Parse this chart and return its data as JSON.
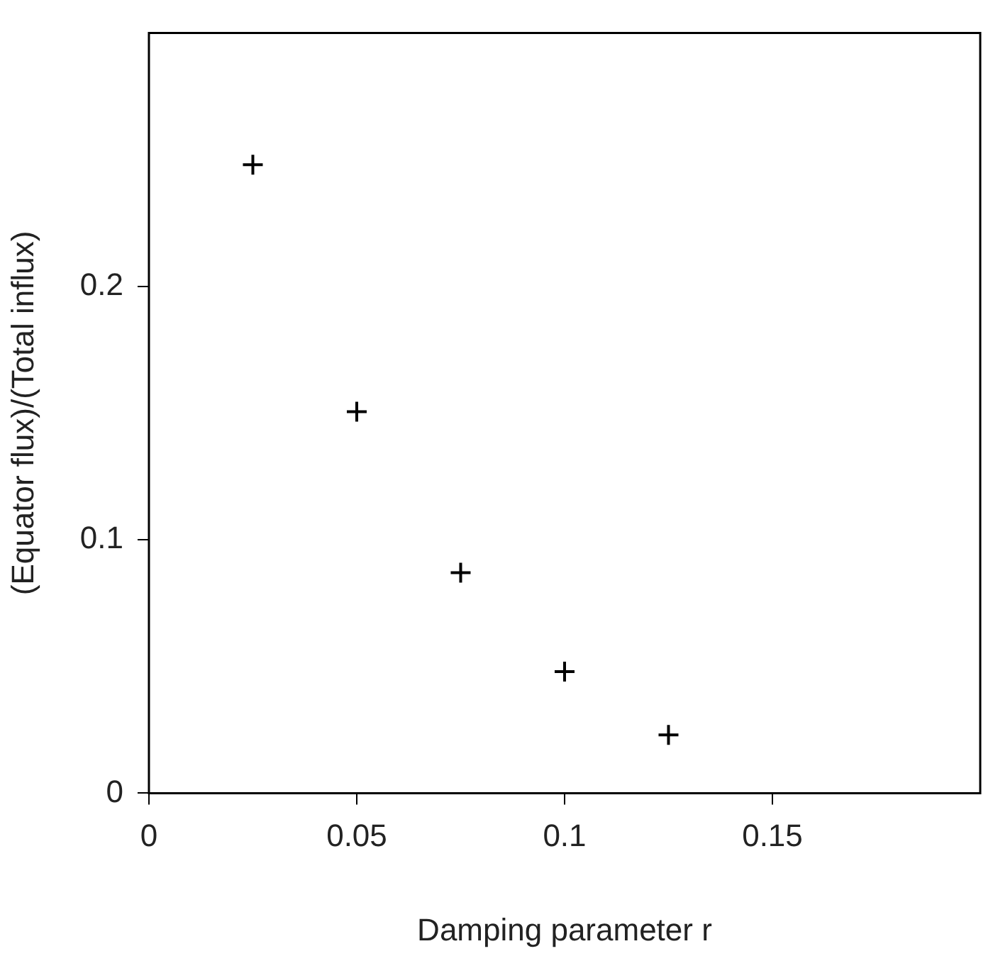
{
  "chart_data": {
    "type": "scatter",
    "xlabel": "Damping parameter r",
    "ylabel": "(Equator flux)/(Total influx)",
    "x": [
      0.025,
      0.05,
      0.075,
      0.1,
      0.125
    ],
    "values": [
      0.248,
      0.1505,
      0.087,
      0.048,
      0.023
    ],
    "color": "#000000",
    "marker": "cross",
    "grid": false,
    "legend": false,
    "xlim": [
      0,
      0.2
    ],
    "ylim": [
      0,
      0.3
    ],
    "xticks": [
      0,
      0.05,
      0.1,
      0.15
    ],
    "yticks": [
      0,
      0.1,
      0.2
    ]
  }
}
